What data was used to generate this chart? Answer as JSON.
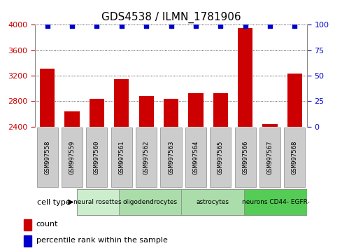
{
  "title": "GDS4538 / ILMN_1781906",
  "samples": [
    "GSM997558",
    "GSM997559",
    "GSM997560",
    "GSM997561",
    "GSM997562",
    "GSM997563",
    "GSM997564",
    "GSM997565",
    "GSM997566",
    "GSM997567",
    "GSM997568"
  ],
  "counts": [
    3310,
    2640,
    2840,
    3140,
    2880,
    2840,
    2920,
    2920,
    3950,
    2440,
    3230
  ],
  "bar_color": "#cc0000",
  "dot_color": "#0000cc",
  "ylim_left": [
    2400,
    4000
  ],
  "ylim_right": [
    0,
    100
  ],
  "yticks_left": [
    2400,
    2800,
    3200,
    3600,
    4000
  ],
  "yticks_right": [
    0,
    25,
    50,
    75,
    100
  ],
  "cell_type_label": "cell type",
  "legend_count_label": "count",
  "legend_pct_label": "percentile rank within the sample",
  "bg_color_plot": "#ffffff",
  "tick_label_color_left": "#cc0000",
  "tick_label_color_right": "#0000cc",
  "sample_bg_color": "#cccccc",
  "grid_color": "#000000",
  "cell_groups": [
    {
      "label": "neural rosettes",
      "start": 0,
      "end": 1,
      "color": "#cceecc"
    },
    {
      "label": "oligodendrocytes",
      "start": 2,
      "end": 4,
      "color": "#aaddaa"
    },
    {
      "label": "astrocytes",
      "start": 5,
      "end": 7,
      "color": "#aaddaa"
    },
    {
      "label": "neurons CD44- EGFR-",
      "start": 8,
      "end": 10,
      "color": "#55cc55"
    }
  ]
}
